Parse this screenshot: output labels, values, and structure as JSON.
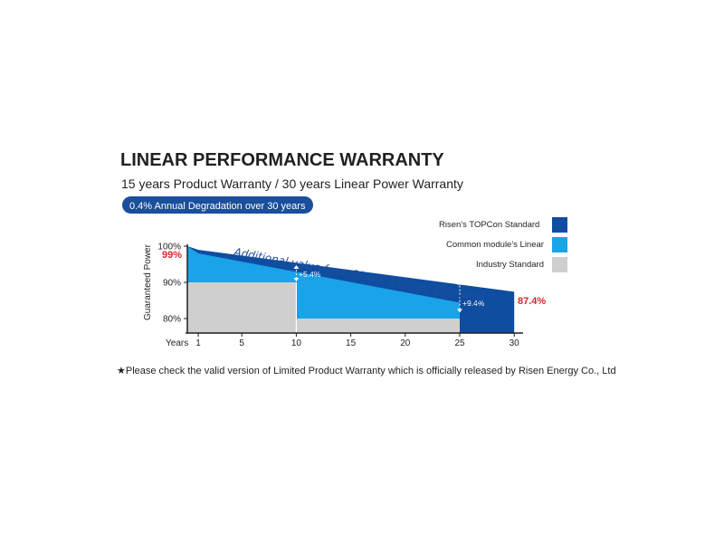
{
  "heading": {
    "title": "LINEAR PERFORMANCE WARRANTY",
    "subtitle": "15 years Product Warranty / 30 years Linear Power Warranty",
    "badge": "0.4% Annual Degradation over 30 years"
  },
  "colors": {
    "topcon": "#0f4da1",
    "common": "#1aa3e8",
    "industry": "#cfcfcf",
    "badge_bg": "#1b4e9b",
    "highlight_red": "#d7282f"
  },
  "chart_data": {
    "type": "area",
    "ylabel": "Guaranteed Power",
    "xlabel": "Years",
    "xlim": [
      0,
      30
    ],
    "ylim": [
      78,
      100
    ],
    "x_ticks": [
      "1",
      "5",
      "10",
      "15",
      "20",
      "25",
      "30"
    ],
    "y_ticks": [
      "100%",
      "90%",
      "80%"
    ],
    "series": [
      {
        "name": "Risen's TOPCon Standard",
        "x": [
          0,
          1,
          30
        ],
        "y": [
          100,
          99,
          87.4
        ]
      },
      {
        "name": "Common module's Linear",
        "x": [
          0,
          1,
          25
        ],
        "y": [
          100,
          98,
          84.4
        ]
      },
      {
        "name": "Industry Standard",
        "x": [
          0,
          10,
          10,
          25
        ],
        "y": [
          90,
          90,
          80,
          80
        ]
      }
    ],
    "annotations": {
      "start_value": "99%",
      "end_value": "87.4%",
      "gain_10": "+5.4%",
      "gain_25": "+9.4%",
      "banner": "Additional value from Risen’ s Linear Warranty"
    }
  },
  "legend": [
    {
      "label": "Risen's TOPCon Standard",
      "color": "#0f4da1"
    },
    {
      "label": "Common module's Linear",
      "color": "#1aa3e8"
    },
    {
      "label": "Industry Standard",
      "color": "#cfcfcf"
    }
  ],
  "footnote": "★Please check the valid version of Limited Product Warranty which is officially released by Risen Energy Co., Ltd"
}
